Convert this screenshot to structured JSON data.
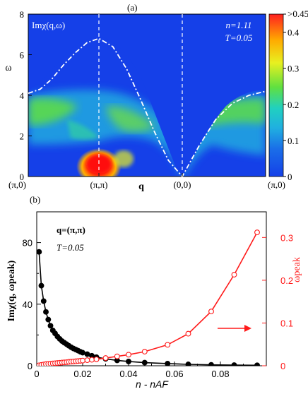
{
  "chart_data": [
    {
      "panel_label": "(a)",
      "type": "heatmap",
      "title": "Imχ(q,ω)",
      "annotation_n": "n=1.11",
      "annotation_T": "T=0.05",
      "xlabel": "q",
      "ylabel": "ω",
      "x_tick_labels": [
        "(π,0)",
        "(π,π)",
        "(0,0)",
        "(π,0)"
      ],
      "y_ticks": [
        0,
        2,
        4,
        6,
        8
      ],
      "ylim": [
        0,
        8
      ],
      "colorbar": {
        "ticks": [
          ">0.45",
          "0.4",
          "0.3",
          "0.2",
          "0.1",
          "0"
        ],
        "range": [
          0,
          0.45
        ],
        "colors": [
          "#ff2020",
          "#ffaa00",
          "#e8f020",
          "#60e040",
          "#20d0c0",
          "#1a6ee8",
          "#1540e8"
        ]
      },
      "boundary": {
        "segments": [
          {
            "from": "(π,0)",
            "to": "(π,π)",
            "omega": [
              4.1,
              4.3,
              4.8,
              5.5,
              6.1,
              6.6,
              6.8
            ]
          },
          {
            "from": "(π,π)",
            "to": "(0,0)",
            "omega": [
              6.8,
              6.4,
              5.3,
              3.8,
              2.2,
              0.8,
              0.0
            ]
          },
          {
            "from": "(0,0)",
            "to": "(π,0)",
            "omega": [
              0.0,
              1.5,
              2.8,
              3.6,
              4.0,
              4.2
            ]
          }
        ]
      }
    },
    {
      "panel_label": "(b)",
      "type": "scatter",
      "annotation_q": "q=(π,π)",
      "annotation_T": "T=0.05",
      "xlabel": "n - nAF",
      "ylabel": "Imχ(q, ωpeak)",
      "y2label": "ωpeak",
      "x_ticks": [
        "0",
        "0.02",
        "0.04",
        "0.06",
        "0.08"
      ],
      "y_ticks": [
        "0",
        "40",
        "80"
      ],
      "y2_ticks": [
        "0",
        "0.1",
        "0.2",
        "0.3"
      ],
      "xlim": [
        0,
        0.1
      ],
      "ylim": [
        0,
        100
      ],
      "y2lim": [
        0,
        0.36
      ],
      "series": [
        {
          "axis": "left",
          "color": "#000000",
          "marker": "filled-circle",
          "x": [
            0.001,
            0.002,
            0.003,
            0.004,
            0.005,
            0.006,
            0.007,
            0.008,
            0.009,
            0.01,
            0.011,
            0.012,
            0.013,
            0.014,
            0.015,
            0.016,
            0.017,
            0.018,
            0.019,
            0.02,
            0.022,
            0.024,
            0.026,
            0.03,
            0.035,
            0.04,
            0.047,
            0.057,
            0.066,
            0.076,
            0.086,
            0.096
          ],
          "y": [
            74,
            52,
            42,
            35,
            30,
            26,
            23,
            21,
            19,
            17.5,
            16,
            15,
            14,
            13,
            12,
            11.2,
            10.5,
            9.8,
            9.1,
            8.5,
            7.5,
            6.5,
            5.6,
            4.5,
            3.5,
            2.8,
            2.0,
            1.4,
            0.9,
            0.6,
            0.4,
            0.3
          ]
        },
        {
          "axis": "right",
          "color": "#ff1a1a",
          "marker": "open-circle",
          "x": [
            0.001,
            0.002,
            0.003,
            0.004,
            0.005,
            0.006,
            0.007,
            0.008,
            0.009,
            0.01,
            0.011,
            0.012,
            0.013,
            0.014,
            0.015,
            0.016,
            0.017,
            0.018,
            0.019,
            0.02,
            0.022,
            0.024,
            0.026,
            0.03,
            0.035,
            0.04,
            0.047,
            0.057,
            0.066,
            0.076,
            0.086,
            0.096
          ],
          "y": [
            0.001,
            0.002,
            0.003,
            0.004,
            0.0045,
            0.005,
            0.0055,
            0.006,
            0.0065,
            0.007,
            0.0075,
            0.008,
            0.0085,
            0.009,
            0.0095,
            0.01,
            0.0105,
            0.011,
            0.0115,
            0.012,
            0.013,
            0.014,
            0.015,
            0.018,
            0.022,
            0.026,
            0.033,
            0.049,
            0.075,
            0.127,
            0.213,
            0.312
          ]
        }
      ]
    }
  ]
}
